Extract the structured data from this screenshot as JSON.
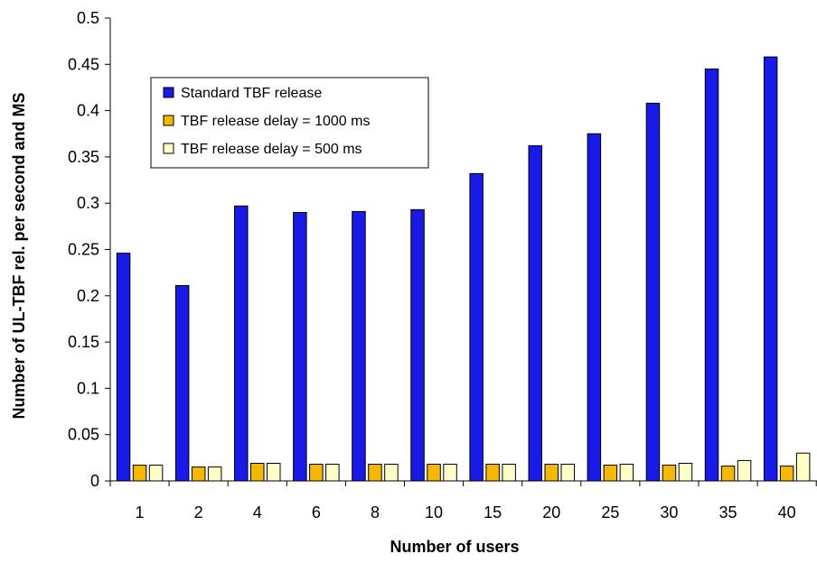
{
  "chart_data": {
    "type": "bar",
    "title": "",
    "xlabel": "Number of users",
    "ylabel": "Number of UL-TBF rel. per second and MS",
    "categories": [
      "1",
      "2",
      "4",
      "6",
      "8",
      "10",
      "15",
      "20",
      "25",
      "30",
      "35",
      "40"
    ],
    "ylim": [
      0,
      0.5
    ],
    "yticks": [
      "0",
      "0.05",
      "0.1",
      "0.15",
      "0.2",
      "0.25",
      "0.3",
      "0.35",
      "0.4",
      "0.45",
      "0.5"
    ],
    "grid": false,
    "legend_position": "top-left",
    "series": [
      {
        "name": "Standard TBF release",
        "color": "#1a1ae6",
        "values": [
          0.246,
          0.211,
          0.297,
          0.29,
          0.291,
          0.293,
          0.332,
          0.362,
          0.375,
          0.408,
          0.445,
          0.458
        ]
      },
      {
        "name": "TBF release delay = 1000 ms",
        "color": "#f5b800",
        "values": [
          0.017,
          0.015,
          0.019,
          0.018,
          0.018,
          0.018,
          0.018,
          0.018,
          0.017,
          0.017,
          0.016,
          0.016
        ]
      },
      {
        "name": "TBF release delay = 500 ms",
        "color": "#ffffc8",
        "values": [
          0.017,
          0.015,
          0.019,
          0.018,
          0.018,
          0.018,
          0.018,
          0.018,
          0.018,
          0.019,
          0.022,
          0.03
        ]
      }
    ]
  }
}
